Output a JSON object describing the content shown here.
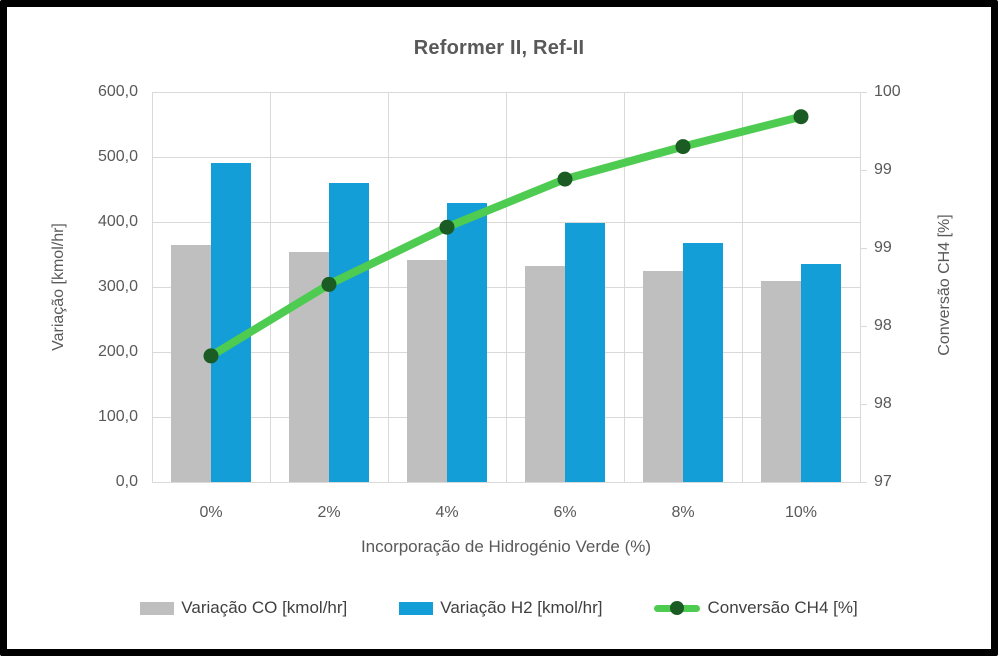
{
  "chart_data": {
    "type": "combo-bar-line",
    "title": "Reformer II, Ref-II",
    "categories": [
      "0%",
      "2%",
      "4%",
      "6%",
      "8%",
      "10%"
    ],
    "x_axis_title": "Incorporação de Hidrogénio Verde (%)",
    "left_axis": {
      "title": "Variação [kmol/hr]",
      "min": 0,
      "max": 600,
      "tick_labels_top_to_bottom": [
        "600,0",
        "500,0",
        "400,0",
        "300,0",
        "200,0",
        "100,0",
        "0,0"
      ]
    },
    "right_axis": {
      "title": "Conversão CH4 [%]",
      "min": 97,
      "max": 100,
      "tick_labels_top_to_bottom": [
        "100",
        "99",
        "99",
        "98",
        "98",
        "97"
      ]
    },
    "grid": {
      "horizontal": true,
      "vertical": true,
      "color": "#d9d9d9"
    },
    "series": [
      {
        "name": "Variação CO [kmol/hr]",
        "type": "bar",
        "axis": "left",
        "color": "#bfbfbf",
        "values": [
          365,
          354,
          342,
          333,
          324,
          310
        ]
      },
      {
        "name": "Variação H2 [kmol/hr]",
        "type": "bar",
        "axis": "left",
        "color": "#149ed8",
        "values": [
          491,
          460,
          430,
          399,
          368,
          336
        ]
      },
      {
        "name": "Conversão CH4 [%]",
        "type": "line",
        "axis": "right",
        "color": "#4ecb51",
        "marker_color": "#1a5c24",
        "values": [
          97.97,
          98.52,
          98.96,
          99.33,
          99.58,
          99.81
        ]
      }
    ],
    "legend_position": "bottom",
    "text_color": "#595959",
    "legend_text_color": "#404040"
  }
}
